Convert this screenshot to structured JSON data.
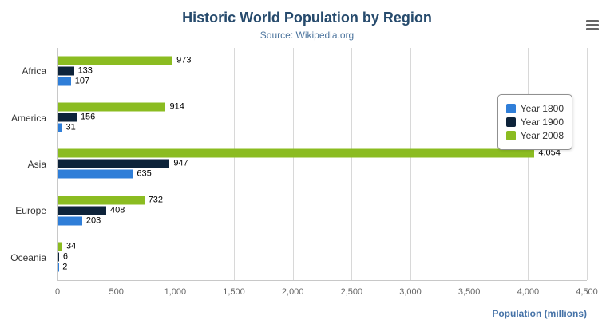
{
  "chart_data": {
    "type": "bar",
    "title": "Historic World Population by Region",
    "subtitle": "Source: Wikipedia.org",
    "categories": [
      "Africa",
      "America",
      "Asia",
      "Europe",
      "Oceania"
    ],
    "series": [
      {
        "name": "Year 1800",
        "color": "#2f7ed8",
        "values": [
          107,
          31,
          635,
          203,
          2
        ]
      },
      {
        "name": "Year 1900",
        "color": "#0d233a",
        "values": [
          133,
          156,
          947,
          408,
          6
        ]
      },
      {
        "name": "Year 2008",
        "color": "#8bbc21",
        "values": [
          973,
          914,
          4054,
          732,
          34
        ]
      }
    ],
    "bar_order_top_to_bottom": [
      "Year 2008",
      "Year 1900",
      "Year 1800"
    ],
    "xlabel": "Population (millions)",
    "xlim": [
      0,
      4500
    ],
    "x_ticks": [
      0,
      500,
      1000,
      1500,
      2000,
      2500,
      3000,
      3500,
      4000,
      4500
    ],
    "x_tick_labels": [
      "0",
      "500",
      "1,000",
      "1,500",
      "2,000",
      "2,500",
      "3,000",
      "3,500",
      "4,000",
      "4,500"
    ],
    "grid": true,
    "legend_position": "right"
  },
  "colors": {
    "title": "#274b6d",
    "subtitle": "#4d759e",
    "axis_title": "#4572a7",
    "gridline": "#d8d8d8"
  },
  "icons": {
    "export_menu": "hamburger"
  }
}
